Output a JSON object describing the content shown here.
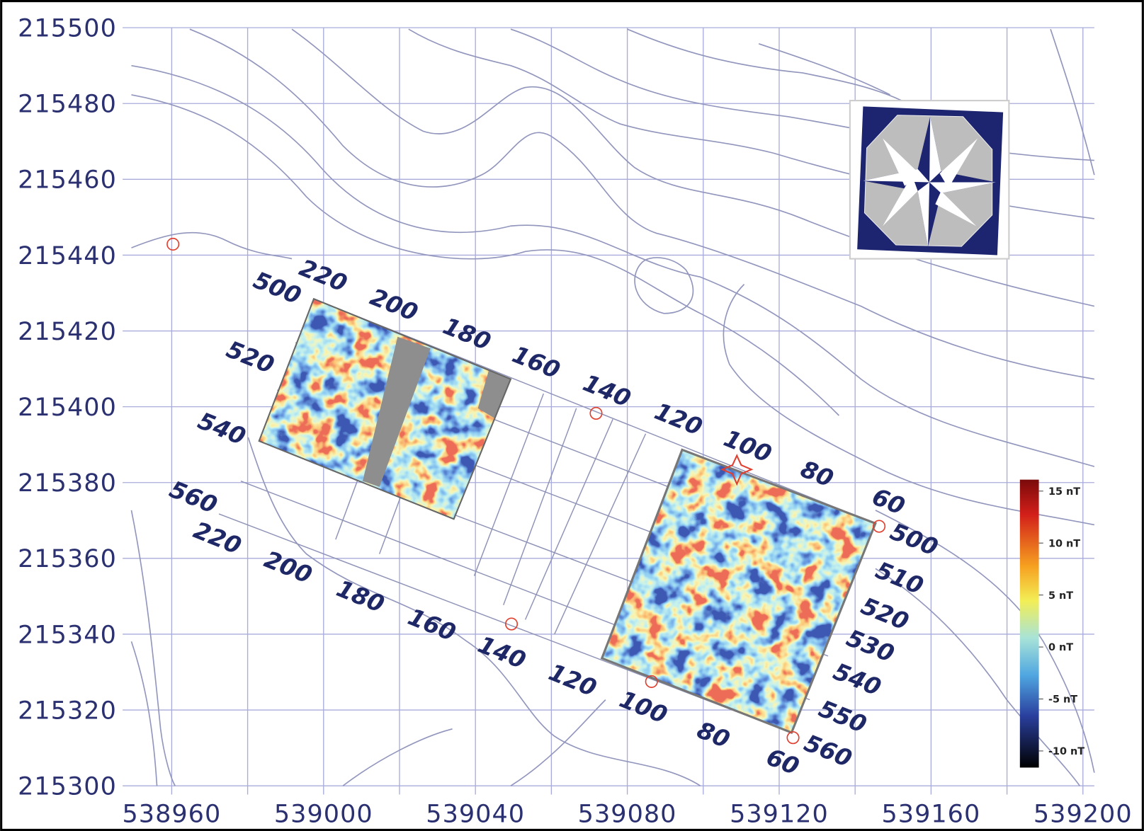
{
  "map": {
    "xlim": [
      538949,
      539203
    ],
    "ylim": [
      215300,
      215500
    ],
    "xticks": [
      538960,
      539000,
      539040,
      539080,
      539120,
      539160,
      539200
    ],
    "yticks": [
      215300,
      215320,
      215340,
      215360,
      215380,
      215400,
      215420,
      215440,
      215460,
      215480,
      215500
    ],
    "x_gridlines": [
      538960,
      538980,
      539000,
      539020,
      539040,
      539060,
      539080,
      539100,
      539120,
      539140,
      539160,
      539180,
      539200
    ],
    "survey_grid_labels": {
      "top": [
        220,
        200,
        180,
        160,
        140,
        120,
        100,
        80,
        60
      ],
      "left": [
        500,
        520,
        540,
        560
      ],
      "bottom": [
        220,
        200,
        180,
        160,
        140,
        120,
        100,
        80,
        60
      ],
      "right": [
        500,
        510,
        520,
        530,
        540,
        550,
        560
      ]
    },
    "colorbar": {
      "clim": [
        -11.6,
        16.1
      ],
      "ticks": [
        {
          "value": 15,
          "label": "15 nT"
        },
        {
          "value": 10,
          "label": "10 nT"
        },
        {
          "value": 5,
          "label": "5 nT"
        },
        {
          "value": 0,
          "label": "0 nT"
        },
        {
          "value": -5,
          "label": "-5 nT"
        },
        {
          "value": -10,
          "label": "-10 nT"
        }
      ]
    }
  }
}
